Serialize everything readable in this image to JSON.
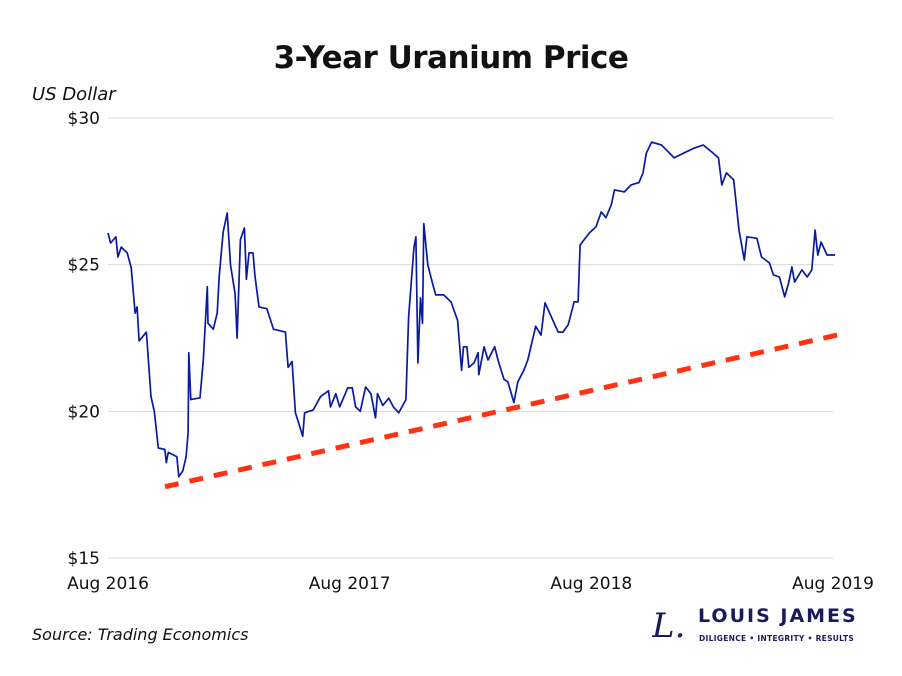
{
  "chart_data": {
    "type": "line",
    "title": "3-Year Uranium Price",
    "ylabel": "US Dollar",
    "xlabel": "",
    "xlim": [
      "2016-08-01",
      "2019-08-01"
    ],
    "ylim": [
      15,
      30
    ],
    "x_ticks": [
      {
        "date": "2016-08-01",
        "label": "Aug 2016"
      },
      {
        "date": "2017-08-01",
        "label": "Aug 2017"
      },
      {
        "date": "2018-08-01",
        "label": "Aug 2018"
      },
      {
        "date": "2019-08-01",
        "label": "Aug 2019"
      }
    ],
    "y_ticks": [
      {
        "value": 30,
        "label": "$30"
      },
      {
        "value": 25,
        "label": "$25"
      },
      {
        "value": 20,
        "label": "$20"
      },
      {
        "value": 15,
        "label": "$15"
      }
    ],
    "grid": "horizontal",
    "colors": {
      "series": "#0a1aa0",
      "trendline": "#ff3311",
      "grid": "#d9d9d9"
    },
    "series": [
      {
        "x": [
          "2016-08-01",
          "2016-08-05",
          "2016-08-13",
          "2016-08-16",
          "2016-08-21",
          "2016-08-30",
          "2016-09-05",
          "2016-09-11",
          "2016-09-14",
          "2016-09-17",
          "2016-09-28",
          "2016-10-05",
          "2016-10-10",
          "2016-10-16",
          "2016-10-26",
          "2016-10-28",
          "2016-10-31",
          "2016-11-13",
          "2016-11-16",
          "2016-11-22",
          "2016-11-27",
          "2016-11-30",
          "2016-12-01",
          "2016-12-04",
          "2016-12-18",
          "2016-12-23",
          "2016-12-29",
          "2016-12-30",
          "2017-01-07",
          "2017-01-13",
          "2017-01-16",
          "2017-01-22",
          "2017-01-28",
          "2017-02-02",
          "2017-02-09",
          "2017-02-12",
          "2017-02-17",
          "2017-02-23",
          "2017-02-26",
          "2017-03-02",
          "2017-03-08",
          "2017-03-11",
          "2017-03-17",
          "2017-03-29",
          "2017-04-08",
          "2017-04-26",
          "2017-04-30",
          "2017-05-06",
          "2017-05-11",
          "2017-05-16",
          "2017-05-22",
          "2017-05-25",
          "2017-06-07",
          "2017-06-18",
          "2017-06-30",
          "2017-07-03",
          "2017-07-11",
          "2017-07-17",
          "2017-07-29",
          "2017-08-05",
          "2017-08-10",
          "2017-08-17",
          "2017-08-25",
          "2017-09-02",
          "2017-09-09",
          "2017-09-12",
          "2017-09-20",
          "2017-09-29",
          "2017-10-06",
          "2017-10-14",
          "2017-10-25",
          "2017-10-29",
          "2017-11-06",
          "2017-11-09",
          "2017-11-12",
          "2017-11-16",
          "2017-11-19",
          "2017-11-21",
          "2017-11-27",
          "2017-12-04",
          "2017-12-09",
          "2017-12-21",
          "2018-01-01",
          "2018-01-11",
          "2018-01-17",
          "2018-01-20",
          "2018-01-25",
          "2018-01-28",
          "2018-02-05",
          "2018-02-11",
          "2018-02-12",
          "2018-02-20",
          "2018-02-26",
          "2018-03-08",
          "2018-03-13",
          "2018-03-22",
          "2018-03-28",
          "2018-04-06",
          "2018-04-12",
          "2018-04-21",
          "2018-04-27",
          "2018-05-09",
          "2018-05-17",
          "2018-05-23",
          "2018-05-29",
          "2018-06-12",
          "2018-06-19",
          "2018-06-27",
          "2018-07-06",
          "2018-07-12",
          "2018-07-15",
          "2018-07-29",
          "2018-08-08",
          "2018-08-16",
          "2018-08-23",
          "2018-08-31",
          "2018-09-05",
          "2018-09-20",
          "2018-09-30",
          "2018-10-12",
          "2018-10-18",
          "2018-10-23",
          "2018-10-31",
          "2018-11-15",
          "2018-11-30",
          "2018-12-04",
          "2018-12-18",
          "2019-01-04",
          "2019-01-17",
          "2019-02-01",
          "2019-02-09",
          "2019-02-14",
          "2019-02-21",
          "2019-03-04",
          "2019-03-12",
          "2019-03-20",
          "2019-03-24",
          "2019-04-08",
          "2019-04-15",
          "2019-04-27",
          "2019-05-03",
          "2019-05-12",
          "2019-05-20",
          "2019-05-26",
          "2019-05-31",
          "2019-06-04",
          "2019-06-15",
          "2019-06-23",
          "2019-06-30",
          "2019-07-05",
          "2019-07-09",
          "2019-07-14",
          "2019-07-23",
          "2019-08-04"
        ],
        "y": [
          26.08,
          25.74,
          25.95,
          25.26,
          25.6,
          25.4,
          24.9,
          23.35,
          23.56,
          22.4,
          22.7,
          20.5,
          20.0,
          18.75,
          18.7,
          18.25,
          18.6,
          18.45,
          17.77,
          17.97,
          18.45,
          19.27,
          22.0,
          20.4,
          20.46,
          21.75,
          24.25,
          23.0,
          22.8,
          23.35,
          24.6,
          26.12,
          26.76,
          25.0,
          24.0,
          22.5,
          25.85,
          26.25,
          24.5,
          25.4,
          25.4,
          24.6,
          23.56,
          23.5,
          22.8,
          22.7,
          21.5,
          21.7,
          19.95,
          19.6,
          19.15,
          19.95,
          20.05,
          20.5,
          20.7,
          20.15,
          20.6,
          20.15,
          20.8,
          20.8,
          20.15,
          20.0,
          20.83,
          20.6,
          19.78,
          20.6,
          20.2,
          20.45,
          20.15,
          19.95,
          20.4,
          23.2,
          25.57,
          25.95,
          21.65,
          23.87,
          23.0,
          26.4,
          25.0,
          24.38,
          23.97,
          23.97,
          23.73,
          23.1,
          21.4,
          22.2,
          22.2,
          21.5,
          21.65,
          22.0,
          21.25,
          22.2,
          21.75,
          22.2,
          21.75,
          21.1,
          21.0,
          20.3,
          21.0,
          21.4,
          21.75,
          22.9,
          22.6,
          23.7,
          23.4,
          22.7,
          22.7,
          22.95,
          23.73,
          23.73,
          25.67,
          26.08,
          26.29,
          26.8,
          26.6,
          27.03,
          27.55,
          27.48,
          27.72,
          27.8,
          28.13,
          28.8,
          29.18,
          29.08,
          28.74,
          28.64,
          28.8,
          28.98,
          29.08,
          28.8,
          28.64,
          27.72,
          28.13,
          27.89,
          26.18,
          25.16,
          25.95,
          25.9,
          25.26,
          25.06,
          24.65,
          24.58,
          23.9,
          24.38,
          24.92,
          24.41,
          24.82,
          24.58,
          24.82,
          26.18,
          25.33,
          25.77,
          25.33,
          25.33
        ]
      }
    ],
    "trendline": {
      "style": "dashed",
      "start": {
        "x": "2016-10-26",
        "y": 17.43
      },
      "end": {
        "x": "2019-08-21",
        "y": 22.67
      }
    }
  },
  "source": "Source: Trading Economics",
  "logo": {
    "mark": "L.",
    "name": "LOUIS JAMES",
    "tagline": "DILIGENCE  •  INTEGRITY  •  RESULTS"
  }
}
